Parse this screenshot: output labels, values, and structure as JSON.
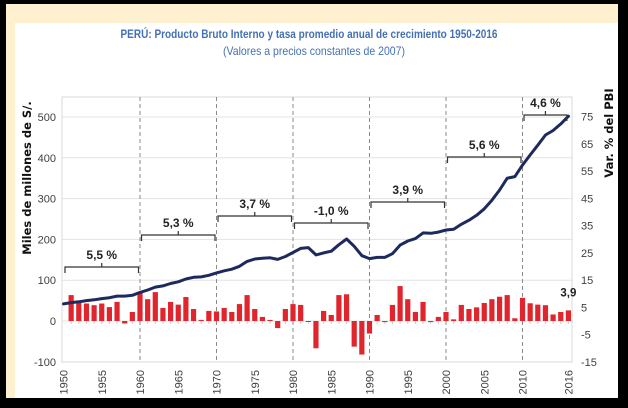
{
  "title": "PERÚ: Producto Bruto Interno y tasa promedio anual de crecimiento 1950-2016",
  "subtitle": "(Valores a precios constantes de 2007)",
  "colors": {
    "title": "#4470b4",
    "line": "#1c2a5e",
    "bars": "#e0252d",
    "accent_strip": "#fff0cf",
    "frame": "#000000"
  },
  "chart_data": {
    "type": "line",
    "title": "PERÚ: Producto Bruto Interno y tasa promedio anual de crecimiento 1950-2016",
    "subtitle": "(Valores a precios constantes de 2007)",
    "xlabel": "",
    "ylabel": "Miles de millones de S/.",
    "ylabel_right": "Var. % del PBI",
    "ylim": [
      -100,
      500
    ],
    "ylim_right": [
      -15,
      75
    ],
    "grid": true,
    "legend": "none",
    "x_ticks": [
      "1950",
      "1955",
      "1960",
      "1965",
      "1970",
      "1975",
      "1980",
      "1985",
      "1990",
      "1995",
      "2000",
      "2005",
      "2010",
      "2016"
    ],
    "y_ticks_left": [
      "-100",
      "0",
      "100",
      "200",
      "300",
      "400",
      "500"
    ],
    "y_ticks_right": [
      "-15",
      "-5",
      "5",
      "15",
      "25",
      "35",
      "45",
      "55",
      "65",
      "75"
    ],
    "decade_dividers": [
      1960,
      1970,
      1980,
      1990,
      2000,
      2010
    ],
    "series": [
      {
        "name": "PBI (Miles de millones de S/.)",
        "type": "line",
        "axis": "left",
        "x": [
          1950,
          1951,
          1952,
          1953,
          1954,
          1955,
          1956,
          1957,
          1958,
          1959,
          1960,
          1961,
          1962,
          1963,
          1964,
          1965,
          1966,
          1967,
          1968,
          1969,
          1970,
          1971,
          1972,
          1973,
          1974,
          1975,
          1976,
          1977,
          1978,
          1979,
          1980,
          1981,
          1982,
          1983,
          1984,
          1985,
          1986,
          1987,
          1988,
          1989,
          1990,
          1991,
          1992,
          1993,
          1994,
          1995,
          1996,
          1997,
          1998,
          1999,
          2000,
          2001,
          2002,
          2003,
          2004,
          2005,
          2006,
          2007,
          2008,
          2009,
          2010,
          2011,
          2012,
          2013,
          2014,
          2015,
          2016
        ],
        "values": [
          42,
          45,
          47,
          50,
          52,
          55,
          57,
          61,
          61,
          63,
          70,
          76,
          83,
          86,
          92,
          96,
          103,
          107,
          108,
          112,
          118,
          123,
          127,
          134,
          146,
          152,
          154,
          155,
          151,
          158,
          168,
          178,
          180,
          162,
          167,
          171,
          187,
          201,
          183,
          160,
          153,
          156,
          156,
          165,
          186,
          196,
          202,
          216,
          215,
          218,
          223,
          225,
          237,
          247,
          259,
          275,
          296,
          321,
          350,
          354,
          382,
          407,
          431,
          456,
          467,
          483,
          502
        ]
      },
      {
        "name": "Var. % del PBI",
        "type": "bar",
        "axis": "right",
        "x": [
          1951,
          1952,
          1953,
          1954,
          1955,
          1956,
          1957,
          1958,
          1959,
          1960,
          1961,
          1962,
          1963,
          1964,
          1965,
          1966,
          1967,
          1968,
          1969,
          1970,
          1971,
          1972,
          1973,
          1974,
          1975,
          1976,
          1977,
          1978,
          1979,
          1980,
          1981,
          1982,
          1983,
          1984,
          1985,
          1986,
          1987,
          1988,
          1989,
          1990,
          1991,
          1992,
          1993,
          1994,
          1995,
          1996,
          1997,
          1998,
          1999,
          2000,
          2001,
          2002,
          2003,
          2004,
          2005,
          2006,
          2007,
          2008,
          2009,
          2010,
          2011,
          2012,
          2013,
          2014,
          2015,
          2016
        ],
        "values": [
          9.5,
          6.6,
          6.4,
          5.8,
          6.4,
          5.1,
          7.0,
          -0.9,
          3.3,
          10.6,
          8.0,
          10.6,
          4.8,
          7.0,
          6.0,
          8.8,
          4.4,
          0.4,
          3.7,
          3.5,
          4.8,
          3.3,
          6.2,
          9.5,
          4.4,
          1.5,
          0.4,
          -2.6,
          4.4,
          6.2,
          5.9,
          -0.3,
          -10.0,
          3.7,
          2.2,
          9.5,
          9.8,
          -9.4,
          -12.3,
          -4.6,
          2.2,
          -0.4,
          5.9,
          12.8,
          8.0,
          3.3,
          7.0,
          -0.4,
          1.5,
          3.3,
          0.6,
          5.9,
          4.4,
          5.0,
          6.6,
          8.0,
          8.9,
          9.5,
          1.0,
          8.5,
          6.5,
          6.0,
          5.8,
          2.4,
          3.3,
          3.9
        ]
      }
    ],
    "period_averages": [
      {
        "start": 1950,
        "end": 1960,
        "value": 5.5,
        "label": "5,5 %"
      },
      {
        "start": 1960,
        "end": 1970,
        "value": 5.3,
        "label": "5,3 %"
      },
      {
        "start": 1970,
        "end": 1980,
        "value": 3.7,
        "label": "3,7 %"
      },
      {
        "start": 1980,
        "end": 1990,
        "value": -1.0,
        "label": "-1,0 %"
      },
      {
        "start": 1990,
        "end": 2000,
        "value": 3.9,
        "label": "3,9 %"
      },
      {
        "start": 2000,
        "end": 2010,
        "value": 5.6,
        "label": "5,6 %"
      },
      {
        "start": 2010,
        "end": 2016,
        "value": 4.6,
        "label": "4,6 %"
      }
    ],
    "annotations": [
      {
        "x": 2016,
        "series": "Var. % del PBI",
        "text": "3,9"
      }
    ]
  }
}
